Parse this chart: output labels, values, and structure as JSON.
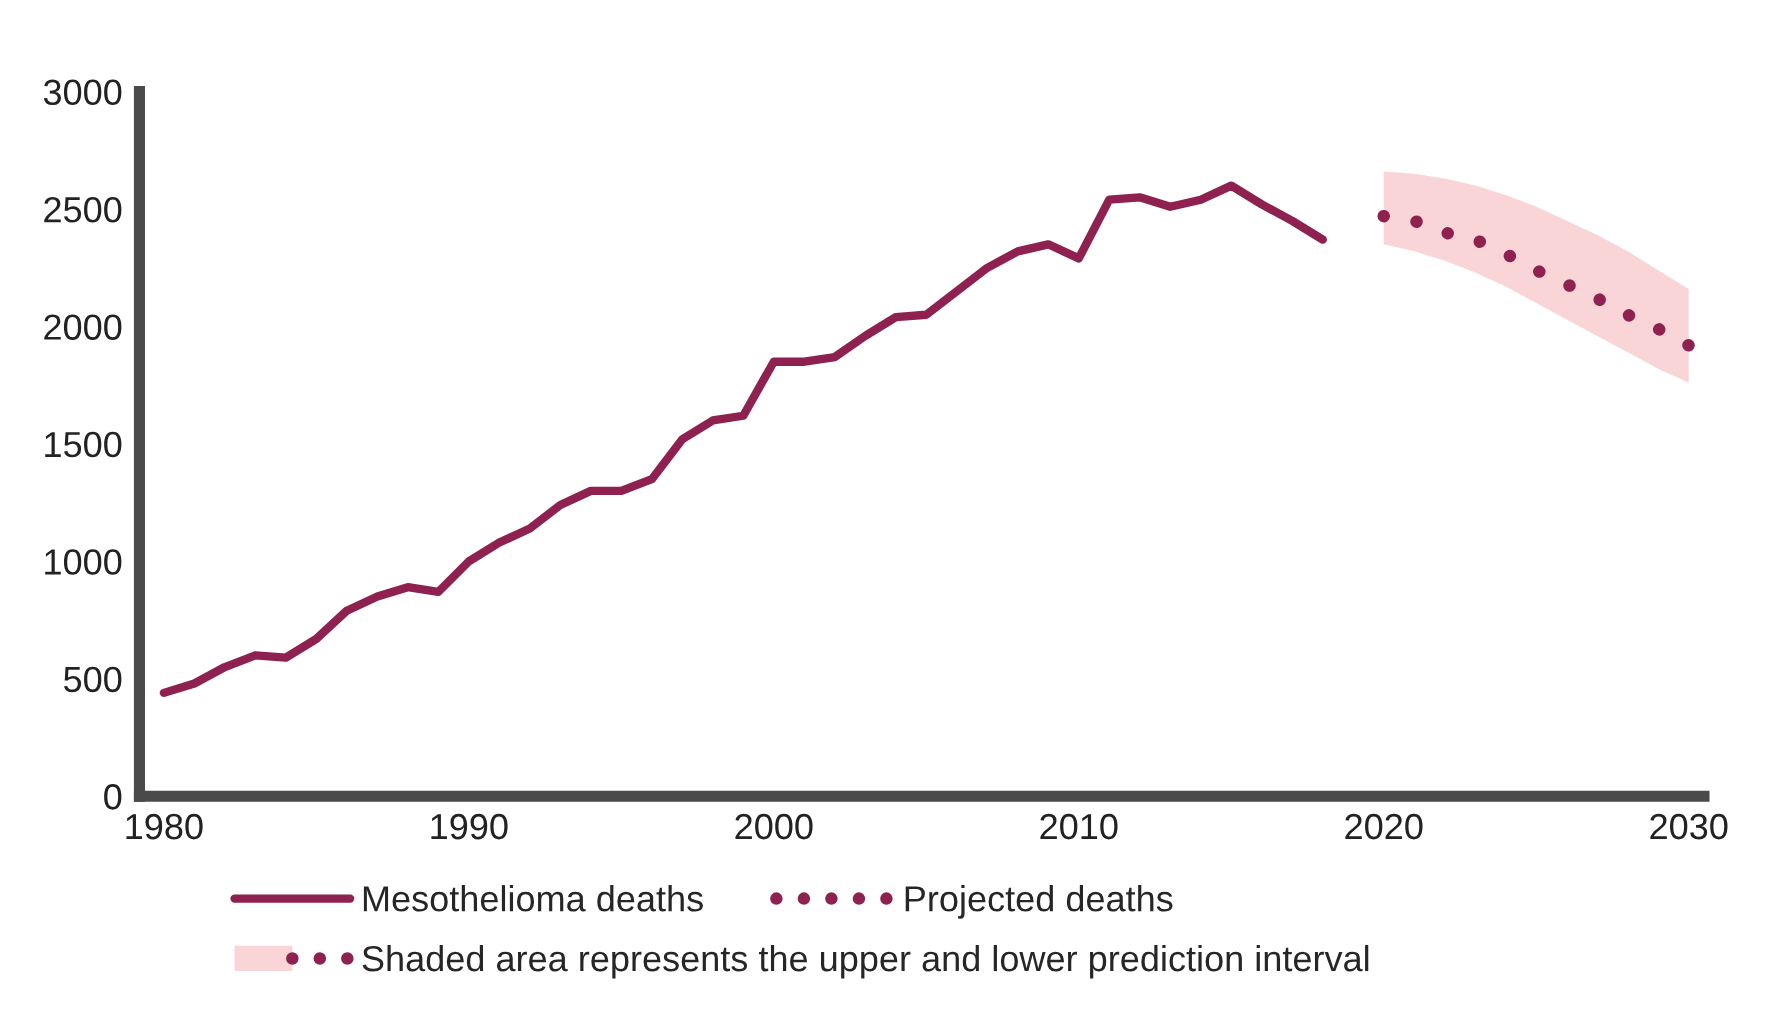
{
  "chart_data": {
    "type": "line",
    "xlim": [
      1979.2,
      2030.5
    ],
    "xticks": [
      1980,
      1990,
      2000,
      2010,
      2020,
      2030
    ],
    "ylim": [
      0,
      3000
    ],
    "yticks": [
      0,
      500,
      1000,
      1500,
      2000,
      2500,
      3000
    ],
    "grid": false,
    "legend": "bottom",
    "annotations": [
      "Shaded area represents the upper and lower prediction interval"
    ],
    "series": [
      {
        "name": "Mesothelioma deaths",
        "color": "#8e2150",
        "line_style": "solid",
        "x": [
          1980,
          1981,
          1982,
          1983,
          1984,
          1985,
          1986,
          1987,
          1988,
          1989,
          1990,
          1991,
          1992,
          1993,
          1994,
          1995,
          1996,
          1997,
          1998,
          1999,
          2000,
          2001,
          2002,
          2003,
          2004,
          2005,
          2006,
          2007,
          2008,
          2009,
          2010,
          2011,
          2012,
          2013,
          2014,
          2015,
          2016,
          2017,
          2018
        ],
        "values": [
          440,
          480,
          550,
          600,
          590,
          670,
          790,
          850,
          890,
          870,
          1000,
          1080,
          1140,
          1240,
          1300,
          1300,
          1350,
          1520,
          1600,
          1620,
          1850,
          1850,
          1870,
          1960,
          2040,
          2050,
          2150,
          2250,
          2320,
          2350,
          2290,
          2540,
          2550,
          2510,
          2540,
          2600,
          2520,
          2450,
          2370
        ]
      },
      {
        "name": "Projected deaths",
        "color": "#8e2150",
        "line_style": "dotted",
        "x": [
          2020,
          2021,
          2022,
          2023,
          2024,
          2025,
          2026,
          2027,
          2028,
          2029,
          2030
        ],
        "values": [
          2470,
          2450,
          2400,
          2370,
          2310,
          2240,
          2180,
          2120,
          2050,
          1990,
          1920
        ],
        "lower": [
          2350,
          2320,
          2280,
          2230,
          2170,
          2100,
          2030,
          1960,
          1890,
          1820,
          1760
        ],
        "upper": [
          2660,
          2650,
          2630,
          2600,
          2560,
          2510,
          2450,
          2390,
          2320,
          2240,
          2160
        ]
      }
    ]
  }
}
